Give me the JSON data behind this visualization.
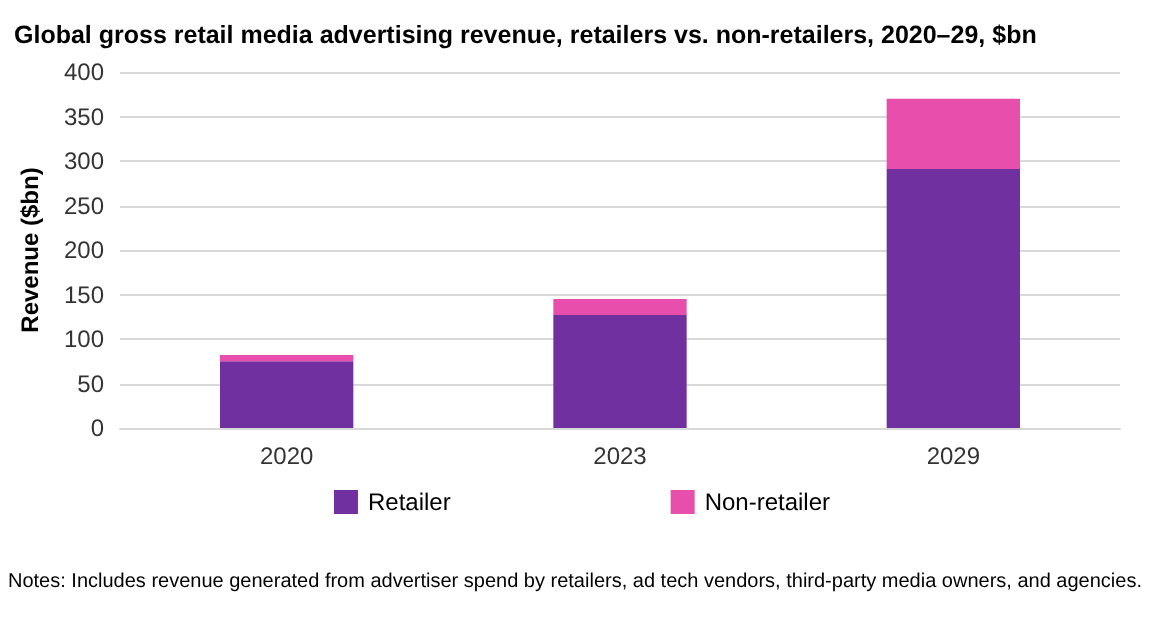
{
  "chart_data": {
    "type": "bar",
    "title": "Global gross retail media advertising revenue, retailers vs. non-retailers, 2020–29, $bn",
    "ylabel": "Revenue ($bn)",
    "categories": [
      "2020",
      "2023",
      "2029"
    ],
    "stacked": true,
    "series": [
      {
        "name": "Retailer",
        "color": "#7030a0",
        "values": [
          75,
          127,
          291
        ]
      },
      {
        "name": "Non-retailer",
        "color": "#e84fad",
        "values": [
          7,
          18,
          79
        ]
      }
    ],
    "ylim": [
      0,
      400
    ],
    "yticks": [
      0,
      50,
      100,
      150,
      200,
      250,
      300,
      350,
      400
    ],
    "grid": "y",
    "legend": "bottom",
    "annotations": [
      "Notes: Includes revenue generated from advertiser spend by retailers, ad tech vendors, third-party media owners, and agencies."
    ]
  }
}
